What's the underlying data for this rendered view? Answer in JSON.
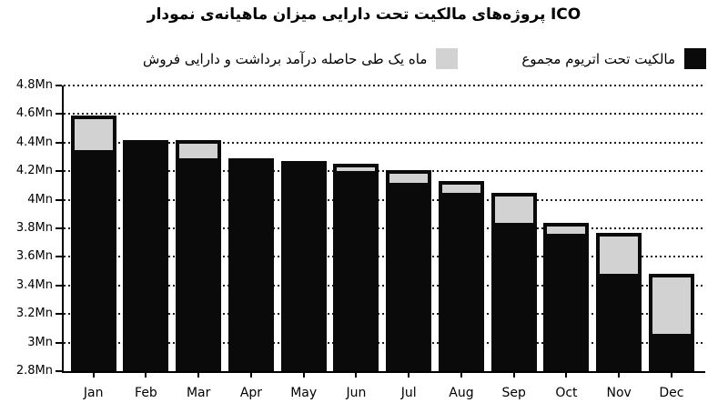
{
  "title": "نمودار ماهیانه‌ی میزان دارایی تحت مالکیت پروژه‌های ICO",
  "legend": {
    "items": [
      {
        "id": "sold",
        "label": "فروش دارایی و برداشت درآمد حاصله طی یک ماه",
        "color": "#d2d2d2"
      },
      {
        "id": "owned",
        "label": "مجموع اتریوم تحت مالکیت",
        "color": "#0a0a0a"
      }
    ]
  },
  "colors": {
    "bar_black": "#0a0a0a",
    "bar_gray": "#d2d2d2",
    "grid": "#1c1c1c",
    "axis": "#000000",
    "background": "#ffffff"
  },
  "chart_data": {
    "type": "bar",
    "stacked": true,
    "title": "نمودار ماهیانه‌ی میزان دارایی تحت مالکیت پروژه‌های ICO",
    "categories": [
      "Jan",
      "Feb",
      "Mar",
      "Apr",
      "May",
      "Jun",
      "Jul",
      "Aug",
      "Sep",
      "Oct",
      "Nov",
      "Dec"
    ],
    "series": [
      {
        "name": "مجموع اتریوم تحت مالکیت",
        "color": "#0a0a0a",
        "values": [
          4.35,
          4.42,
          4.29,
          4.29,
          4.27,
          4.2,
          4.12,
          4.05,
          3.84,
          3.76,
          3.48,
          3.06
        ]
      },
      {
        "name": "فروش دارایی و برداشت درآمد حاصله طی یک ماه",
        "color": "#d2d2d2",
        "values": [
          0.24,
          0.0,
          0.13,
          0.0,
          0.0,
          0.05,
          0.09,
          0.08,
          0.21,
          0.08,
          0.29,
          0.42
        ]
      }
    ],
    "stack_totals": [
      4.59,
      4.42,
      4.42,
      4.29,
      4.27,
      4.25,
      4.21,
      4.13,
      4.05,
      3.84,
      3.77,
      3.48
    ],
    "unit": "Mn",
    "ylim": [
      2.8,
      4.8
    ],
    "ytick_step": 0.2,
    "ytick_labels": [
      "2.8Mn",
      "3Mn",
      "3.2Mn",
      "3.4Mn",
      "3.6Mn",
      "3.8Mn",
      "4Mn",
      "4.2Mn",
      "4.4Mn",
      "4.6Mn",
      "4.8Mn"
    ],
    "xlabel": "",
    "ylabel": "",
    "grid": "dotted-horizontal",
    "legend_position": "top-right"
  }
}
